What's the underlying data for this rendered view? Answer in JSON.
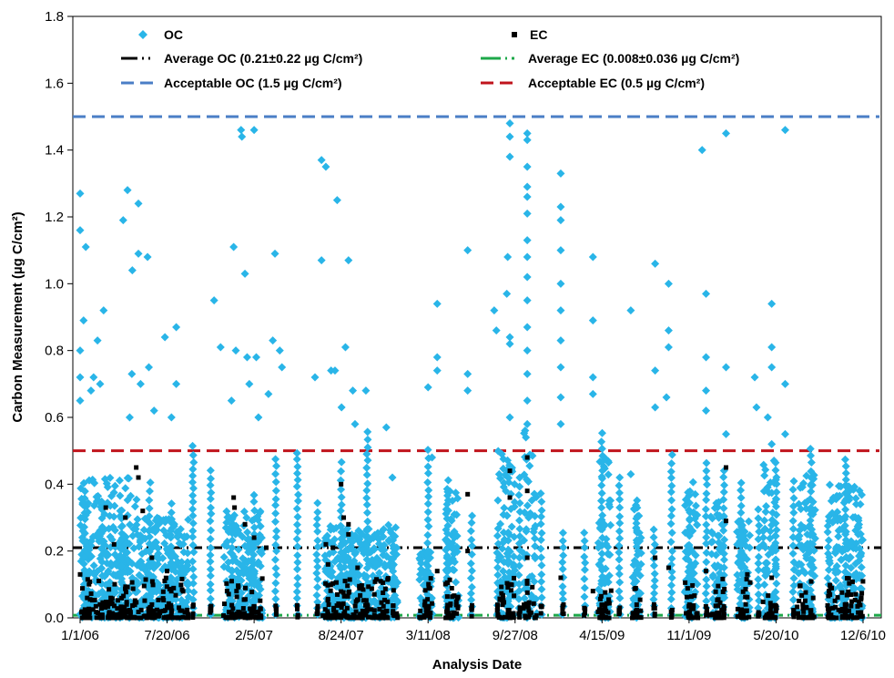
{
  "chart_data": {
    "type": "scatter",
    "title": "",
    "xlabel": "Analysis Date",
    "ylabel": "Carbon Measurement (µg C/cm²)",
    "x_tick_labels": [
      "1/1/06",
      "7/20/06",
      "2/5/07",
      "8/24/07",
      "3/11/08",
      "9/27/08",
      "4/15/09",
      "11/1/09",
      "5/20/10",
      "12/6/10"
    ],
    "xlim": [
      "1/1/06",
      "12/6/10"
    ],
    "ylim": [
      0,
      1.8
    ],
    "y_ticks": [
      "0.0",
      "0.2",
      "0.4",
      "0.6",
      "0.8",
      "1.0",
      "1.2",
      "1.4",
      "1.6",
      "1.8"
    ],
    "grid": false,
    "legend_position": "top",
    "series": [
      {
        "name": "OC",
        "marker": "diamond",
        "color": "#29B5E8",
        "points": [
          [
            "1/1/06",
            1.27
          ],
          [
            "1/1/06",
            1.16
          ],
          [
            "1/14/06",
            1.11
          ],
          [
            "1/9/06",
            0.89
          ],
          [
            "1/1/06",
            0.8
          ],
          [
            "1/1/06",
            0.72
          ],
          [
            "1/1/06",
            0.65
          ],
          [
            "2/24/06",
            0.92
          ],
          [
            "2/10/06",
            0.83
          ],
          [
            "2/1/06",
            0.72
          ],
          [
            "1/26/06",
            0.68
          ],
          [
            "2/16/06",
            0.7
          ],
          [
            "4/20/06",
            1.28
          ],
          [
            "4/10/06",
            1.19
          ],
          [
            "5/15/06",
            1.24
          ],
          [
            "5/15/06",
            1.09
          ],
          [
            "5/1/06",
            1.04
          ],
          [
            "6/5/06",
            1.08
          ],
          [
            "4/30/06",
            0.73
          ],
          [
            "5/20/06",
            0.7
          ],
          [
            "6/8/06",
            0.75
          ],
          [
            "6/20/06",
            0.62
          ],
          [
            "4/25/06",
            0.6
          ],
          [
            "7/15/06",
            0.84
          ],
          [
            "8/10/06",
            0.87
          ],
          [
            "8/10/06",
            0.7
          ],
          [
            "7/30/06",
            0.6
          ],
          [
            "11/5/06",
            0.95
          ],
          [
            "11/20/06",
            0.81
          ],
          [
            "12/20/06",
            1.11
          ],
          [
            "1/6/07",
            1.46
          ],
          [
            "1/8/07",
            1.44
          ],
          [
            "1/15/07",
            1.03
          ],
          [
            "2/5/07",
            1.46
          ],
          [
            "12/15/06",
            0.65
          ],
          [
            "12/25/06",
            0.8
          ],
          [
            "1/20/07",
            0.78
          ],
          [
            "1/25/07",
            0.7
          ],
          [
            "2/10/07",
            0.78
          ],
          [
            "2/15/07",
            0.6
          ],
          [
            "3/10/07",
            0.67
          ],
          [
            "7/10/07",
            1.37
          ],
          [
            "7/20/07",
            1.35
          ],
          [
            "7/10/07",
            1.07
          ],
          [
            "8/15/07",
            1.25
          ],
          [
            "9/10/07",
            1.07
          ],
          [
            "8/1/07",
            0.74
          ],
          [
            "8/10/07",
            0.74
          ],
          [
            "8/25/07",
            0.63
          ],
          [
            "9/3/07",
            0.81
          ],
          [
            "9/20/07",
            0.68
          ],
          [
            "9/25/07",
            0.58
          ],
          [
            "3/20/07",
            0.83
          ],
          [
            "3/25/07",
            1.09
          ],
          [
            "4/5/07",
            0.8
          ],
          [
            "4/10/07",
            0.75
          ],
          [
            "6/25/07",
            0.72
          ],
          [
            "10/20/07",
            0.68
          ],
          [
            "12/20/07",
            0.42
          ],
          [
            "4/1/08",
            0.94
          ],
          [
            "4/1/08",
            0.78
          ],
          [
            "4/1/08",
            0.74
          ],
          [
            "6/10/08",
            1.1
          ],
          [
            "6/10/08",
            0.73
          ],
          [
            "6/10/08",
            0.68
          ],
          [
            "8/10/08",
            0.92
          ],
          [
            "8/15/08",
            0.86
          ],
          [
            "9/15/08",
            1.48
          ],
          [
            "9/15/08",
            1.44
          ],
          [
            "9/15/08",
            1.38
          ],
          [
            "9/10/08",
            1.08
          ],
          [
            "9/8/08",
            0.97
          ],
          [
            "9/15/08",
            0.84
          ],
          [
            "9/15/08",
            0.82
          ],
          [
            "9/15/08",
            0.6
          ],
          [
            "10/25/08",
            1.45
          ],
          [
            "10/25/08",
            1.43
          ],
          [
            "10/25/08",
            1.35
          ],
          [
            "10/25/08",
            1.29
          ],
          [
            "10/25/08",
            1.26
          ],
          [
            "10/25/08",
            1.21
          ],
          [
            "10/25/08",
            1.13
          ],
          [
            "10/25/08",
            1.08
          ],
          [
            "10/25/08",
            1.02
          ],
          [
            "10/25/08",
            0.95
          ],
          [
            "10/25/08",
            0.87
          ],
          [
            "10/25/08",
            0.8
          ],
          [
            "10/25/08",
            0.73
          ],
          [
            "10/25/08",
            0.65
          ],
          [
            "10/25/08",
            0.58
          ],
          [
            "1/10/09",
            1.33
          ],
          [
            "1/10/09",
            1.23
          ],
          [
            "1/10/09",
            1.19
          ],
          [
            "1/10/09",
            1.1
          ],
          [
            "1/10/09",
            1.0
          ],
          [
            "1/10/09",
            0.92
          ],
          [
            "1/10/09",
            0.83
          ],
          [
            "1/10/09",
            0.75
          ],
          [
            "1/10/09",
            0.66
          ],
          [
            "1/10/09",
            0.58
          ],
          [
            "3/25/09",
            1.08
          ],
          [
            "3/25/09",
            0.89
          ],
          [
            "3/25/09",
            0.72
          ],
          [
            "3/25/09",
            0.67
          ],
          [
            "6/20/09",
            0.92
          ],
          [
            "6/20/09",
            0.43
          ],
          [
            "8/15/09",
            1.06
          ],
          [
            "8/15/09",
            0.74
          ],
          [
            "8/15/09",
            0.63
          ],
          [
            "9/15/09",
            1.0
          ],
          [
            "9/15/09",
            0.86
          ],
          [
            "9/15/09",
            0.81
          ],
          [
            "9/10/09",
            0.66
          ],
          [
            "12/1/09",
            1.4
          ],
          [
            "12/10/09",
            0.97
          ],
          [
            "12/10/09",
            0.78
          ],
          [
            "12/10/09",
            0.68
          ],
          [
            "12/10/09",
            0.62
          ],
          [
            "1/25/10",
            1.45
          ],
          [
            "1/25/10",
            0.75
          ],
          [
            "1/25/10",
            0.55
          ],
          [
            "4/1/10",
            0.72
          ],
          [
            "4/5/10",
            0.63
          ],
          [
            "5/1/10",
            0.6
          ],
          [
            "5/10/10",
            0.94
          ],
          [
            "5/10/10",
            0.81
          ],
          [
            "5/10/10",
            0.75
          ],
          [
            "5/10/10",
            0.52
          ],
          [
            "6/10/10",
            1.46
          ],
          [
            "6/10/10",
            0.7
          ],
          [
            "6/10/10",
            0.55
          ],
          [
            "3/11/08",
            0.69
          ],
          [
            "3/20/08",
            0.48
          ],
          [
            "12/6/07",
            0.57
          ]
        ]
      },
      {
        "name": "EC",
        "marker": "square",
        "color": "#000000",
        "points": [
          [
            "1/1/06",
            0.13
          ],
          [
            "3/1/06",
            0.33
          ],
          [
            "3/20/06",
            0.22
          ],
          [
            "4/15/06",
            0.3
          ],
          [
            "5/10/06",
            0.45
          ],
          [
            "5/15/06",
            0.42
          ],
          [
            "5/25/06",
            0.32
          ],
          [
            "6/15/06",
            0.18
          ],
          [
            "7/20/06",
            0.14
          ],
          [
            "12/20/06",
            0.36
          ],
          [
            "12/22/06",
            0.33
          ],
          [
            "1/15/07",
            0.28
          ],
          [
            "2/5/07",
            0.24
          ],
          [
            "3/5/07",
            0.21
          ],
          [
            "7/20/07",
            0.22
          ],
          [
            "7/25/07",
            0.16
          ],
          [
            "8/5/07",
            0.21
          ],
          [
            "8/24/07",
            0.4
          ],
          [
            "8/30/07",
            0.3
          ],
          [
            "9/10/07",
            0.28
          ],
          [
            "9/10/07",
            0.25
          ],
          [
            "10/1/07",
            0.15
          ],
          [
            "4/1/08",
            0.14
          ],
          [
            "6/10/08",
            0.37
          ],
          [
            "6/10/08",
            0.2
          ],
          [
            "9/15/08",
            0.44
          ],
          [
            "9/15/08",
            0.36
          ],
          [
            "10/25/08",
            0.48
          ],
          [
            "10/25/08",
            0.38
          ],
          [
            "10/25/08",
            0.18
          ],
          [
            "1/10/09",
            0.12
          ],
          [
            "3/25/09",
            0.08
          ],
          [
            "8/15/09",
            0.18
          ],
          [
            "9/15/09",
            0.15
          ],
          [
            "12/10/09",
            0.14
          ],
          [
            "1/25/10",
            0.45
          ],
          [
            "1/25/10",
            0.29
          ],
          [
            "3/15/10",
            0.13
          ],
          [
            "5/10/10",
            0.12
          ]
        ]
      }
    ],
    "reference_lines": [
      {
        "name": "Average OC (0.21±0.22 µg C/cm²)",
        "value": 0.21,
        "style": "dash-dot",
        "color": "#000000"
      },
      {
        "name": "Average EC (0.008±0.036 µg C/cm²)",
        "value": 0.008,
        "style": "dash-dot",
        "color": "#1EA84A"
      },
      {
        "name": "Acceptable OC (1.5 µg C/cm²)",
        "value": 1.5,
        "style": "dashed",
        "color": "#4A7EC6"
      },
      {
        "name": "Acceptable EC (0.5 µg C/cm²)",
        "value": 0.5,
        "style": "dashed",
        "color": "#C0141C"
      }
    ]
  }
}
